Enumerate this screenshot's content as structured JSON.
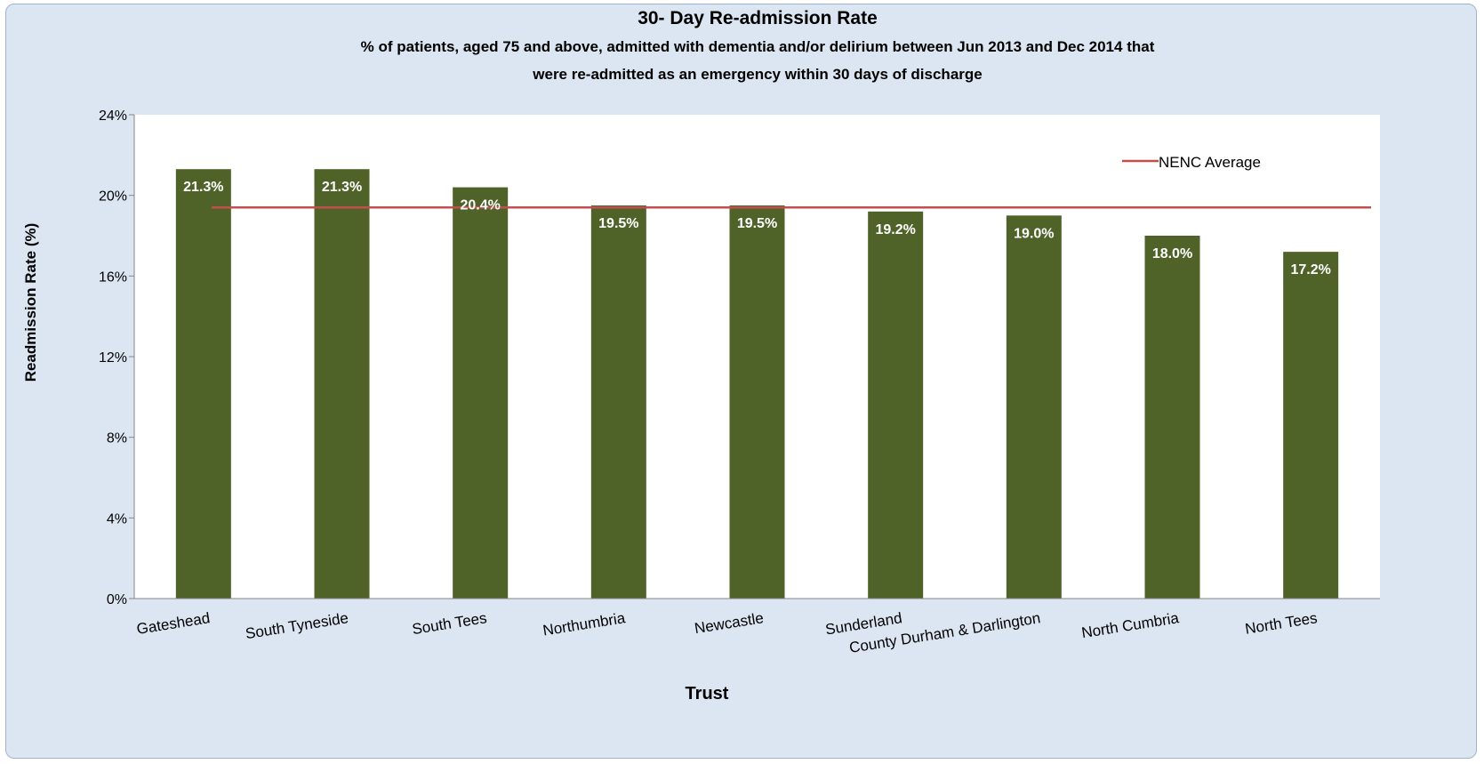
{
  "chart_data": {
    "type": "bar",
    "title": "30- Day Re-admission Rate",
    "subtitle_line1": "% of patients, aged 75 and above, admitted with dementia and/or delirium between Jun 2013 and Dec 2014 that",
    "subtitle_line2": "were re-admitted as an emergency within 30 days of discharge",
    "xlabel": "Trust",
    "ylabel": "Readmission Rate (%)",
    "ylim": [
      0,
      24
    ],
    "yticks": [
      "0%",
      "4%",
      "8%",
      "12%",
      "16%",
      "20%",
      "24%"
    ],
    "categories": [
      "Gateshead",
      "South Tyneside",
      "South Tees",
      "Northumbria",
      "Newcastle",
      "Sunderland",
      "County Durham & Darlington",
      "North Cumbria",
      "North Tees"
    ],
    "values": [
      21.3,
      21.3,
      20.4,
      19.5,
      19.5,
      19.2,
      19.0,
      18.0,
      17.2
    ],
    "data_labels": [
      "21.3%",
      "21.3%",
      "20.4%",
      "19.5%",
      "19.5%",
      "19.2%",
      "19.0%",
      "18.0%",
      "17.2%"
    ],
    "reference_line": {
      "name": "NENC Average",
      "value": 19.4
    },
    "legend_position": "top-right",
    "grid": false,
    "colors": {
      "bar": "#4f6228",
      "line": "#c0504d",
      "plot_bg": "#ffffff",
      "frame_bg": "#dce6f2"
    }
  }
}
